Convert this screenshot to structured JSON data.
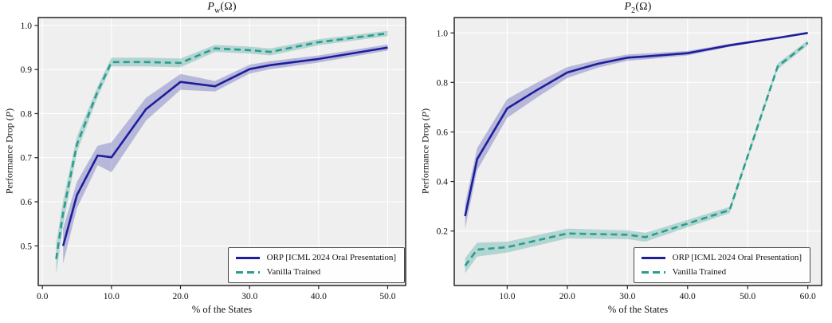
{
  "figure": {
    "background": "#ffffff",
    "plot_background": "#efefef",
    "grid_color": "#ffffff",
    "frame_color": "#262626"
  },
  "colors": {
    "orp": "#1e1e9c",
    "orp_band": "rgba(70,70,175,0.33)",
    "vanilla": "#2a9d8f",
    "vanilla_band": "rgba(58,160,150,0.33)"
  },
  "chart_data": [
    {
      "type": "line",
      "title": "P_w(Omega)",
      "title_parts": {
        "p": "P",
        "sub": "w",
        "rest": "(Ω)"
      },
      "xlabel": "% of the States",
      "ylabel_prefix": "Performance Drop (",
      "ylabel_p": "P",
      "ylabel_suffix": ")",
      "xlim": [
        -0.6,
        52.6
      ],
      "ylim": [
        0.41,
        1.018
      ],
      "grid": true,
      "legend_position": "lower right",
      "x_ticks": [
        {
          "v": 0,
          "label": "0.0"
        },
        {
          "v": 10,
          "label": "10.0"
        },
        {
          "v": 20,
          "label": "20.0"
        },
        {
          "v": 30,
          "label": "30.0"
        },
        {
          "v": 40,
          "label": "40.0"
        },
        {
          "v": 50,
          "label": "50.0"
        }
      ],
      "y_ticks": [
        {
          "v": 0.5,
          "label": "0.5"
        },
        {
          "v": 0.6,
          "label": "0.6"
        },
        {
          "v": 0.7,
          "label": "0.7"
        },
        {
          "v": 0.8,
          "label": "0.8"
        },
        {
          "v": 0.9,
          "label": "0.9"
        },
        {
          "v": 1.0,
          "label": "1.0"
        }
      ],
      "series": [
        {
          "name": "ORP [ICML 2024 Oral Presentation]",
          "style": "solid",
          "color": "#1e1e9c",
          "band_color": "rgba(70,70,175,0.33)",
          "x": [
            3,
            5,
            8,
            10,
            15,
            20,
            25,
            30,
            33,
            40,
            50
          ],
          "y": [
            0.5,
            0.615,
            0.705,
            0.701,
            0.81,
            0.872,
            0.862,
            0.901,
            0.91,
            0.924,
            0.95
          ],
          "band": [
            0.04,
            0.03,
            0.022,
            0.034,
            0.026,
            0.018,
            0.012,
            0.01,
            0.009,
            0.008,
            0.007
          ]
        },
        {
          "name": "Vanilla Trained",
          "style": "dashed",
          "color": "#2a9d8f",
          "band_color": "rgba(58,160,150,0.33)",
          "x": [
            2,
            3,
            5,
            8,
            10,
            15,
            20,
            25,
            30,
            33,
            40,
            50
          ],
          "y": [
            0.47,
            0.575,
            0.73,
            0.85,
            0.917,
            0.917,
            0.915,
            0.948,
            0.944,
            0.94,
            0.962,
            0.982
          ],
          "band": [
            0.035,
            0.028,
            0.018,
            0.012,
            0.01,
            0.01,
            0.01,
            0.008,
            0.008,
            0.008,
            0.007,
            0.006
          ]
        }
      ]
    },
    {
      "type": "line",
      "title": "P_2(Omega)",
      "title_parts": {
        "p": "P",
        "sub": "2",
        "rest": "(Ω)"
      },
      "xlabel": "% of the States",
      "ylabel_prefix": "Performance Drop (",
      "ylabel_p": "P",
      "ylabel_suffix": ")",
      "xlim": [
        1.2,
        62.3
      ],
      "ylim": [
        -0.02,
        1.062
      ],
      "grid": true,
      "legend_position": "lower right",
      "x_ticks": [
        {
          "v": 10,
          "label": "10.0"
        },
        {
          "v": 20,
          "label": "20.0"
        },
        {
          "v": 30,
          "label": "30.0"
        },
        {
          "v": 40,
          "label": "40.0"
        },
        {
          "v": 50,
          "label": "50.0"
        },
        {
          "v": 60,
          "label": "60.0"
        }
      ],
      "y_ticks": [
        {
          "v": 0.2,
          "label": "0.2"
        },
        {
          "v": 0.4,
          "label": "0.4"
        },
        {
          "v": 0.6,
          "label": "0.6"
        },
        {
          "v": 0.8,
          "label": "0.8"
        },
        {
          "v": 1.0,
          "label": "1.0"
        }
      ],
      "series": [
        {
          "name": "ORP [ICML 2024 Oral Presentation]",
          "style": "solid",
          "color": "#1e1e9c",
          "band_color": "rgba(70,70,175,0.33)",
          "x": [
            3,
            5,
            10,
            15,
            20,
            25,
            30,
            33,
            40,
            47,
            55,
            60
          ],
          "y": [
            0.26,
            0.49,
            0.695,
            0.77,
            0.84,
            0.875,
            0.9,
            0.905,
            0.918,
            0.95,
            0.98,
            1.0
          ],
          "band": [
            0.05,
            0.045,
            0.038,
            0.03,
            0.022,
            0.016,
            0.013,
            0.012,
            0.009,
            0.006,
            0.003,
            0.002
          ]
        },
        {
          "name": "Vanilla Trained",
          "style": "dashed",
          "color": "#2a9d8f",
          "band_color": "rgba(58,160,150,0.33)",
          "x": [
            3,
            5,
            10,
            20,
            30,
            33,
            40,
            47,
            55,
            60
          ],
          "y": [
            0.06,
            0.125,
            0.135,
            0.19,
            0.185,
            0.175,
            0.23,
            0.285,
            0.865,
            0.96
          ],
          "band": [
            0.03,
            0.028,
            0.022,
            0.02,
            0.018,
            0.018,
            0.015,
            0.013,
            0.012,
            0.01
          ]
        }
      ]
    }
  ]
}
